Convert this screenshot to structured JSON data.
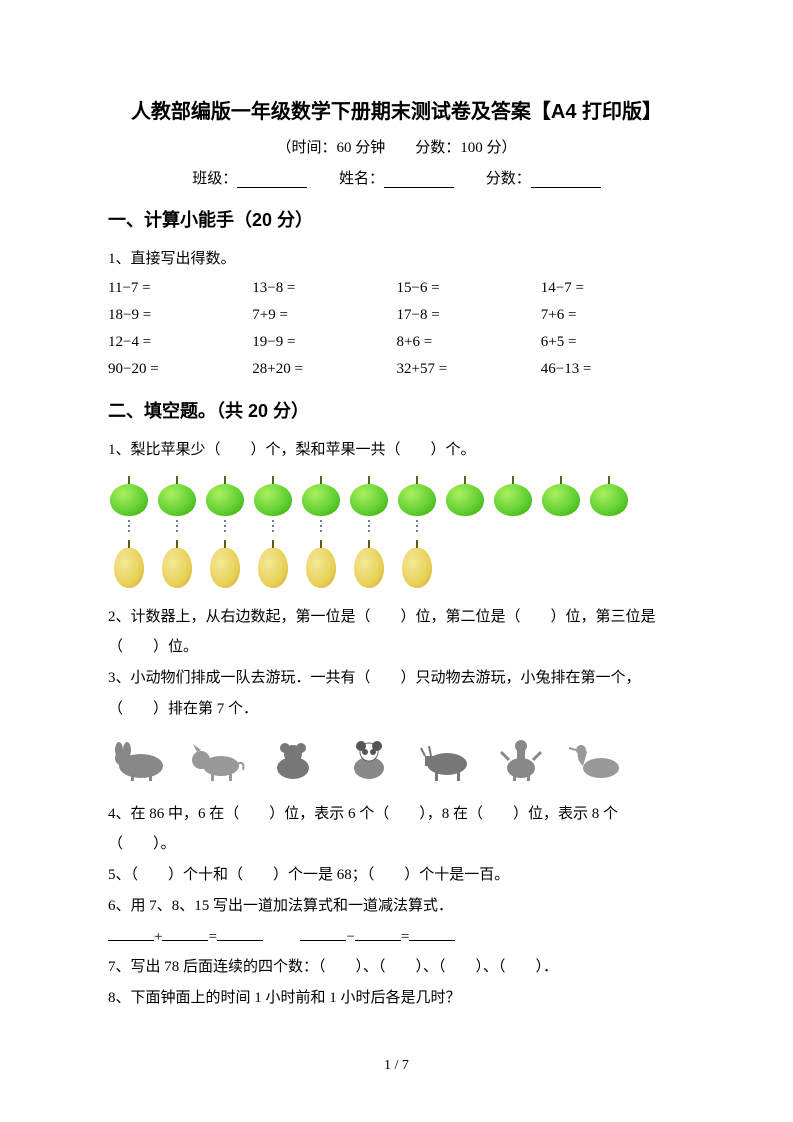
{
  "title": "人教部编版一年级数学下册期末测试卷及答案【A4 打印版】",
  "subtitle": "（时间：60 分钟　　分数：100 分）",
  "info": {
    "class": "班级：",
    "name": "姓名：",
    "score": "分数："
  },
  "section1": {
    "heading": "一、计算小能手（20 分）",
    "q1": "1、直接写出得数。",
    "rows": [
      [
        "11−7 =",
        "13−8 =",
        "15−6 =",
        "14−7 ="
      ],
      [
        "18−9 =",
        "7+9 =",
        "17−8 =",
        "7+6 ="
      ],
      [
        "12−4 =",
        "19−9 =",
        "8+6 =",
        "6+5 ="
      ],
      [
        "90−20 =",
        "28+20 =",
        "32+57 =",
        "46−13 ="
      ]
    ]
  },
  "section2": {
    "heading": "二、填空题。（共 20 分）",
    "q1": "1、梨比苹果少（　　）个，梨和苹果一共（　　）个。",
    "apple_count": 11,
    "pear_count": 7,
    "apple_color": "#5fcf2f",
    "pear_color": "#e8d156",
    "q2": "2、计数器上，从右边数起，第一位是（　　）位，第二位是（　　）位，第三位是（　　）位。",
    "q3": "3、小动物们排成一队去游玩．一共有（　　）只动物去游玩，小兔排在第一个，（　　）排在第 7 个．",
    "animal_count": 7,
    "q4": "4、在 86 中，6 在（　　）位，表示 6 个（　　），8 在（　　）位，表示 8 个（　　）。",
    "q5": "5、（　　）个十和（　　）个一是 68；（　　）个十是一百。",
    "q6": "6、用 7、8、15 写出一道加法算式和一道减法算式．",
    "q7": "7、写出 78 后面连续的四个数：（　　）、（　　）、（　　）、（　　）．",
    "q8": "8、下面钟面上的时间 1 小时前和 1 小时后各是几时？"
  },
  "eq": {
    "plus": "+",
    "minus": "−",
    "eq": "="
  },
  "footer": "1 / 7",
  "colors": {
    "text": "#000000",
    "background": "#ffffff"
  },
  "fonts": {
    "title_family": "SimHei",
    "body_family": "SimSun",
    "title_size": 20,
    "heading_size": 18,
    "body_size": 15
  }
}
